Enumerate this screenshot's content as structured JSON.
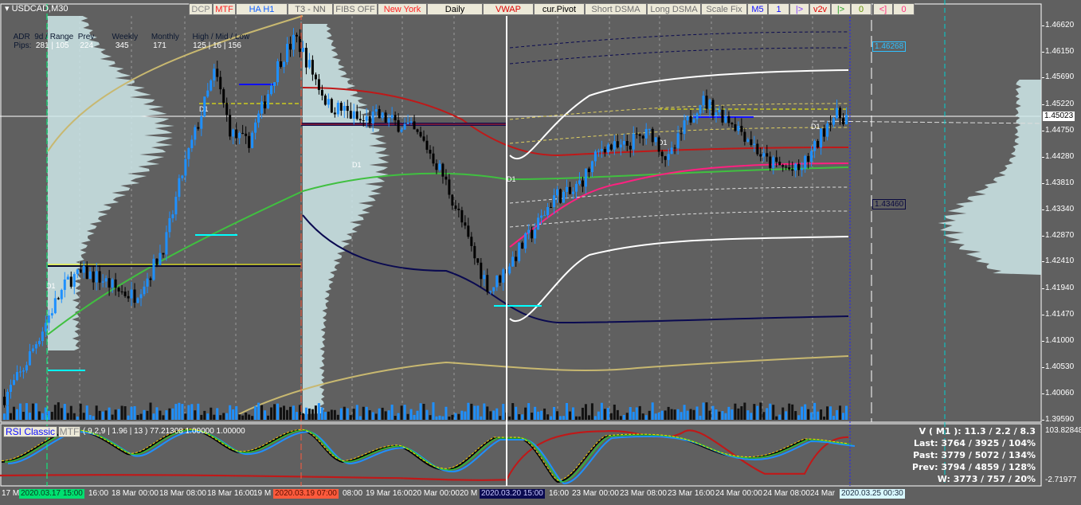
{
  "symbol": "USDCAD,M30",
  "toolbar": [
    {
      "label": "DCP",
      "color": "#8a8a8a"
    },
    {
      "label": "MTF",
      "color": "#ff2020"
    },
    {
      "label": "HA H1",
      "color": "#1060ff"
    },
    {
      "label": "T3 - NN",
      "color": "#606060"
    },
    {
      "label": "FIBS OFF",
      "color": "#707070"
    },
    {
      "label": "New York",
      "color": "#ff2020"
    },
    {
      "label": "Daily",
      "color": "#000000"
    },
    {
      "label": "VWAP",
      "color": "#e00000"
    },
    {
      "label": "cur.Pivot",
      "color": "#000000"
    },
    {
      "label": "Short DSMA",
      "color": "#707070"
    },
    {
      "label": "Long DSMA",
      "color": "#707070"
    },
    {
      "label": "Scale Fix",
      "color": "#707070"
    },
    {
      "label": "M5",
      "color": "#1010ff"
    },
    {
      "label": "1",
      "color": "#1010ff"
    },
    {
      "label": "|>",
      "color": "#8040ff"
    },
    {
      "label": "v2v",
      "color": "#e00000"
    },
    {
      "label": "|>",
      "color": "#20a020"
    },
    {
      "label": "0",
      "color": "#609000"
    },
    {
      "label": "<]",
      "color": "#ff3080"
    },
    {
      "label": "0",
      "color": "#ff3080"
    }
  ],
  "adr": {
    "header": [
      "ADR",
      "9d / Range",
      "Prev",
      "Weekly",
      "Monthly",
      "High / Mid / Low"
    ],
    "row_label": "Pips:",
    "values": [
      "281 | 105",
      "224",
      "345",
      "171",
      "125 | 16 | 156"
    ]
  },
  "price_axis": [
    "1.46620",
    "1.46150",
    "1.45690",
    "1.45220",
    "1.44750",
    "1.44280",
    "1.43810",
    "1.43340",
    "1.42870",
    "1.42410",
    "1.41940",
    "1.41470",
    "1.41000",
    "1.40530",
    "1.40060",
    "1.39590"
  ],
  "current_price": "1.45023",
  "level_tags": {
    "upper": "1.46268",
    "lower": "1.43460"
  },
  "day_marker": "D1",
  "time_axis": [
    "17 M",
    "16:00",
    "18 Mar 00:00",
    "18 Mar 08:00",
    "18 Mar 16:00",
    "19 M",
    "08:00",
    "19 Mar 16:00",
    "20 Mar 00:00",
    "20 M",
    "16:00",
    "23 Mar 00:00",
    "23 Mar 08:00",
    "23 Mar 16:00",
    "24 Mar 00:00",
    "24 Mar 08:00",
    "24 Mar"
  ],
  "time_tags": [
    {
      "label": "2020.03.17 15:00",
      "bg": "#00e070",
      "fg": "#0b3a20"
    },
    {
      "label": "2020.03.19 07:00",
      "bg": "#ff5a3c",
      "fg": "#5a1000"
    },
    {
      "label": "2020.03.20 15:00",
      "bg": "#0a0a50",
      "fg": "#c8c8ff"
    },
    {
      "label": "2020.03.25 00:30",
      "bg": "#d8f8ff",
      "fg": "#203040"
    }
  ],
  "indicator": {
    "button": "RSI Classic",
    "mtf_button": "MTF",
    "params": "( 9,2,9 | 1.96 | 13 ) 77.21308 1.00000 1.00000",
    "scale_max": "103.82848",
    "scale_min": "-2.71977"
  },
  "volume_stats": [
    {
      "label": "V ( M1 ):",
      "value": "11.3 / 2.2 / 8.3"
    },
    {
      "label": "Last:",
      "value": "3764 / 3925 / 104%"
    },
    {
      "label": "Past:",
      "value": "3779 / 5072 / 134%"
    },
    {
      "label": "Prev:",
      "value": "3794 / 4859 / 128%"
    },
    {
      "label": "W:",
      "value": "3773 / 757 / 20%"
    }
  ],
  "chart_data": {
    "type": "candlestick",
    "ylim": [
      1.3959,
      1.4662
    ],
    "approx_closes": [
      1.4,
      1.404,
      1.41,
      1.416,
      1.421,
      1.422,
      1.421,
      1.419,
      1.418,
      1.422,
      1.428,
      1.44,
      1.449,
      1.458,
      1.447,
      1.445,
      1.452,
      1.46,
      1.464,
      1.458,
      1.452,
      1.451,
      1.449,
      1.45,
      1.449,
      1.448,
      1.445,
      1.44,
      1.433,
      1.425,
      1.419,
      1.423,
      1.427,
      1.431,
      1.436,
      1.436,
      1.44,
      1.445,
      1.444,
      1.446,
      1.447,
      1.442,
      1.448,
      1.453,
      1.451,
      1.449,
      1.446,
      1.442,
      1.441,
      1.44,
      1.444,
      1.45,
      1.45
    ],
    "colors": {
      "up": "#1e90ff",
      "down": "#000000",
      "background": "#606060"
    }
  }
}
